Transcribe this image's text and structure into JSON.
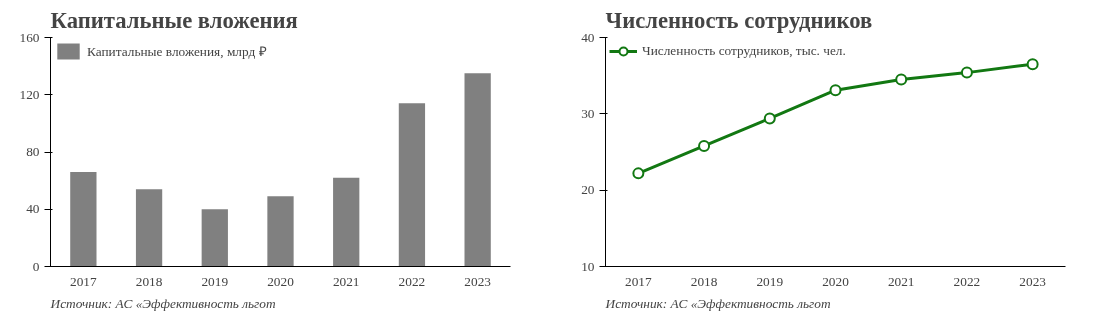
{
  "chart_data": [
    {
      "type": "bar",
      "title": "Капитальные вложения",
      "categories": [
        "2017",
        "2018",
        "2019",
        "2020",
        "2021",
        "2022",
        "2023"
      ],
      "series": [
        {
          "name": "Капитальные вложения, млрд ₽",
          "color": "#808080",
          "values": [
            66,
            54,
            40,
            49,
            62,
            114,
            135
          ]
        }
      ],
      "ylim": [
        0,
        160
      ],
      "yticks": [
        0,
        40,
        80,
        120,
        160
      ],
      "grid": false,
      "legend": "top left",
      "annotations": [
        "Источник: АС «Эффективность льгот"
      ]
    },
    {
      "type": "line",
      "title": "Численность сотрудников",
      "categories": [
        "2017",
        "2018",
        "2019",
        "2020",
        "2021",
        "2022",
        "2023"
      ],
      "series": [
        {
          "name": "Численность сотрудников, тыс. чел.",
          "color": "#127812",
          "values": [
            22.2,
            25.8,
            29.4,
            33.1,
            34.5,
            35.4,
            36.5
          ]
        }
      ],
      "ylim": [
        10,
        40
      ],
      "yticks": [
        10,
        20,
        30,
        40
      ],
      "grid": false,
      "legend": "top left",
      "marker": "circle",
      "line_style": "solid",
      "annotations": [
        "Источник: АС «Эффективность льгот"
      ]
    }
  ]
}
